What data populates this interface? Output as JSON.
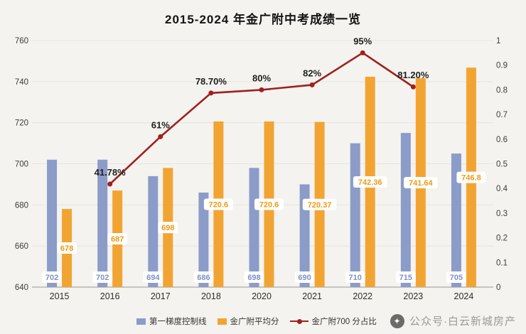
{
  "title": "2015-2024 年金广附中考成绩一览",
  "watermark": {
    "text": "公众号·白云新城房产",
    "icon": "compass-icon"
  },
  "colors": {
    "first_tier_bar": "#8c9cc9",
    "average_bar": "#f2a432",
    "ratio_line": "#9e2020",
    "bar_label_blue": "#7e91c6",
    "bar_label_orange": "#ee9a14",
    "percent_label": "#1f1f1f"
  },
  "legend": [
    {
      "label": "第一梯度控制线",
      "color": "#8c9cc9",
      "type": "bar"
    },
    {
      "label": "金广附平均分",
      "color": "#f2a432",
      "type": "bar"
    },
    {
      "label": "金广附700 分占比",
      "color": "#9e2020",
      "type": "line"
    }
  ],
  "chart_data": {
    "type": "bar+line",
    "title": "2015-2024 年金广附中考成绩一览",
    "categories": [
      "2015",
      "2016",
      "2017",
      "2018",
      "2020",
      "2021",
      "2022",
      "2023",
      "2024"
    ],
    "series": [
      {
        "name": "第一梯度控制线",
        "type": "bar",
        "axis": "left",
        "color": "#8c9cc9",
        "values": [
          702,
          702,
          694,
          686,
          698,
          690,
          710,
          715,
          705
        ],
        "labels": [
          "702",
          "702",
          "694",
          "686",
          "698",
          "690",
          "710",
          "715",
          "705"
        ]
      },
      {
        "name": "金广附平均分",
        "type": "bar",
        "axis": "left",
        "color": "#f2a432",
        "values": [
          678,
          687,
          698,
          720.6,
          720.6,
          720.37,
          742.36,
          741.64,
          746.8
        ],
        "labels": [
          "678",
          "687",
          "698",
          "720.6",
          "720.6",
          "720.37",
          "742.36",
          "741.64",
          "746.8"
        ]
      },
      {
        "name": "金广附700 分占比",
        "type": "line",
        "axis": "right",
        "color": "#9e2020",
        "values": [
          null,
          0.4178,
          0.61,
          0.787,
          0.8,
          0.82,
          0.95,
          0.812,
          null
        ],
        "labels": [
          "",
          "41.78%",
          "61%",
          "78.70%",
          "80%",
          "82%",
          "95%",
          "81.20%",
          ""
        ]
      }
    ],
    "left_axis": {
      "min": 640,
      "max": 760,
      "step": 20,
      "ticks": [
        "640",
        "660",
        "680",
        "700",
        "720",
        "740",
        "760"
      ]
    },
    "right_axis": {
      "min": 0,
      "max": 1,
      "step": 0.1,
      "ticks": [
        "0",
        "0.1",
        "0.2",
        "0.3",
        "0.4",
        "0.5",
        "0.6",
        "0.7",
        "0.8",
        "0.9",
        "1"
      ]
    },
    "grid": true,
    "legend_position": "bottom"
  }
}
